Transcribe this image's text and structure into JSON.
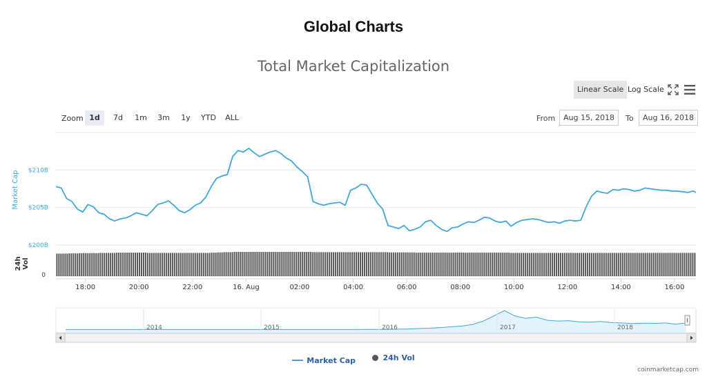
{
  "page_heading": "Global Charts",
  "toolbar": {
    "linear_scale_label": "Linear Scale",
    "log_scale_label": "Log Scale",
    "zoom_label": "Zoom",
    "zoom_buttons": [
      "1d",
      "7d",
      "1m",
      "3m",
      "1y",
      "YTD",
      "ALL"
    ],
    "zoom_active": "1d",
    "from_label": "From",
    "from_value": "Aug 15, 2018",
    "to_label": "To",
    "to_value": "Aug 16, 2018"
  },
  "credit": "coinmarketcap.com",
  "colors": {
    "market_cap_line": "#3fa7dc",
    "volume_bars": "#555555",
    "navigator_fill": "#e3f2fb",
    "legend_text": "#2d5fa6"
  },
  "chart_data": {
    "type": "line",
    "title": "Total Market Capitalization",
    "xlabel": "",
    "ylabel": "Market Cap",
    "ylabel_volume": "24h Vol",
    "y_ticks": [
      "$200B",
      "$205B",
      "$210B"
    ],
    "y_tick_values": [
      200,
      205,
      210
    ],
    "ylim": [
      200,
      215
    ],
    "volume_tick": "0",
    "x_ticks": [
      "18:00",
      "20:00",
      "22:00",
      "16. Aug",
      "02:00",
      "04:00",
      "06:00",
      "08:00",
      "10:00",
      "12:00",
      "14:00",
      "16:00"
    ],
    "x_tick_hours": [
      18,
      20,
      22,
      24,
      26,
      28,
      30,
      32,
      34,
      36,
      38,
      40
    ],
    "xlim_hours": [
      16.9,
      40.8
    ],
    "grid": true,
    "legend_position": "bottom-center",
    "series": [
      {
        "name": "Market Cap",
        "unit": "billion USD",
        "x_hours": [
          16.9,
          17.1,
          17.3,
          17.5,
          17.7,
          17.9,
          18.1,
          18.3,
          18.5,
          18.7,
          18.9,
          19.1,
          19.3,
          19.5,
          19.7,
          19.9,
          20.1,
          20.3,
          20.5,
          20.7,
          20.9,
          21.1,
          21.3,
          21.5,
          21.7,
          21.9,
          22.1,
          22.3,
          22.5,
          22.7,
          22.9,
          23.1,
          23.3,
          23.5,
          23.7,
          23.9,
          24.1,
          24.3,
          24.5,
          24.7,
          24.9,
          25.1,
          25.3,
          25.5,
          25.7,
          25.9,
          26.1,
          26.3,
          26.5,
          26.7,
          26.9,
          27.1,
          27.3,
          27.5,
          27.7,
          27.9,
          28.1,
          28.3,
          28.5,
          28.7,
          28.9,
          29.1,
          29.3,
          29.5,
          29.7,
          29.9,
          30.1,
          30.3,
          30.5,
          30.7,
          30.9,
          31.1,
          31.3,
          31.5,
          31.7,
          31.9,
          32.1,
          32.3,
          32.5,
          32.7,
          32.9,
          33.1,
          33.3,
          33.5,
          33.7,
          33.9,
          34.1,
          34.3,
          34.5,
          34.7,
          34.9,
          35.1,
          35.3,
          35.5,
          35.7,
          35.9,
          36.1,
          36.3,
          36.5,
          36.7,
          36.9,
          37.1,
          37.3,
          37.5,
          37.7,
          37.9,
          38.1,
          38.3,
          38.5,
          38.7,
          38.9,
          39.1,
          39.3,
          39.5,
          39.7,
          39.9,
          40.1,
          40.3,
          40.5,
          40.7,
          40.8
        ],
        "values": [
          207.8,
          207.6,
          206.2,
          205.8,
          204.8,
          204.4,
          205.4,
          205.1,
          204.3,
          204.1,
          203.5,
          203.2,
          203.5,
          203.6,
          203.9,
          204.3,
          204.1,
          203.9,
          204.6,
          205.4,
          205.6,
          205.9,
          205.3,
          204.6,
          204.3,
          204.7,
          205.3,
          205.6,
          206.4,
          207.8,
          208.9,
          209.2,
          209.4,
          211.8,
          212.6,
          212.4,
          212.9,
          212.3,
          211.8,
          212.1,
          212.4,
          212.6,
          212.2,
          211.6,
          211.2,
          210.4,
          209.8,
          209.1,
          205.8,
          205.5,
          205.3,
          205.5,
          205.6,
          205.7,
          205.3,
          207.3,
          207.6,
          208.1,
          208.0,
          206.8,
          205.6,
          204.8,
          202.6,
          202.4,
          202.2,
          202.6,
          201.9,
          202.1,
          202.4,
          203.1,
          203.3,
          202.6,
          202.1,
          201.8,
          202.3,
          202.4,
          202.8,
          203.1,
          203.0,
          203.3,
          203.7,
          203.6,
          203.2,
          203.0,
          203.2,
          202.5,
          203.0,
          203.3,
          203.4,
          203.5,
          203.4,
          203.2,
          203.0,
          203.1,
          202.9,
          203.2,
          203.3,
          203.2,
          203.3,
          205.1,
          206.5,
          207.2,
          207.0,
          206.9,
          207.4,
          207.3,
          207.5,
          207.4,
          207.2,
          207.3,
          207.6,
          207.5,
          207.4,
          207.3,
          207.3,
          207.2,
          207.2,
          207.1,
          207.0,
          207.2,
          207.0
        ]
      },
      {
        "name": "24h Vol",
        "values_relative": [
          0.93,
          0.93,
          0.94,
          0.94,
          0.95,
          0.95,
          0.95,
          0.95,
          0.96,
          0.96,
          0.96,
          0.97,
          0.97,
          0.97,
          0.97,
          0.97,
          0.97,
          0.96,
          0.96,
          0.96,
          0.96,
          0.96,
          0.96,
          0.96,
          0.96,
          0.96,
          0.96,
          0.96,
          0.96,
          0.97,
          0.98,
          0.99,
          0.99,
          1.0,
          1.0,
          1.0,
          1.0,
          1.0,
          1.0,
          1.0,
          1.0,
          1.0,
          1.0,
          1.0,
          1.0,
          1.0,
          1.0,
          1.0,
          0.99,
          0.99,
          0.99,
          0.99,
          0.99,
          0.99,
          0.99,
          0.99,
          0.99,
          0.99,
          0.99,
          0.99,
          0.99,
          0.99,
          0.98,
          0.98,
          0.98,
          0.98,
          0.98,
          0.97,
          0.97,
          0.97,
          0.97,
          0.97,
          0.97,
          0.97,
          0.97,
          0.97,
          0.97,
          0.97,
          0.97,
          0.97,
          0.97,
          0.97,
          0.97,
          0.97,
          0.97,
          0.96,
          0.96,
          0.96,
          0.96,
          0.96,
          0.96,
          0.96,
          0.96,
          0.96,
          0.96,
          0.96,
          0.96,
          0.96,
          0.96,
          0.96,
          0.96,
          0.96,
          0.96,
          0.96,
          0.96,
          0.96,
          0.96,
          0.96,
          0.96,
          0.96,
          0.96,
          0.96,
          0.96,
          0.96,
          0.96,
          0.96,
          0.96,
          0.96,
          0.96,
          0.96
        ]
      }
    ],
    "navigator": {
      "x_labels": [
        "2014",
        "2015",
        "2016",
        "2017",
        "2018"
      ],
      "values_relative": [
        0.02,
        0.02,
        0.02,
        0.02,
        0.02,
        0.02,
        0.02,
        0.02,
        0.02,
        0.02,
        0.02,
        0.02,
        0.02,
        0.02,
        0.02,
        0.02,
        0.02,
        0.02,
        0.02,
        0.02,
        0.02,
        0.02,
        0.02,
        0.02,
        0.02,
        0.02,
        0.02,
        0.02,
        0.03,
        0.03,
        0.03,
        0.04,
        0.05,
        0.07,
        0.09,
        0.12,
        0.16,
        0.2,
        0.28,
        0.45,
        0.72,
        1.0,
        0.72,
        0.6,
        0.66,
        0.5,
        0.46,
        0.48,
        0.42,
        0.4,
        0.44,
        0.38,
        0.36,
        0.33,
        0.35,
        0.34,
        0.36,
        0.3,
        0.36
      ]
    }
  }
}
